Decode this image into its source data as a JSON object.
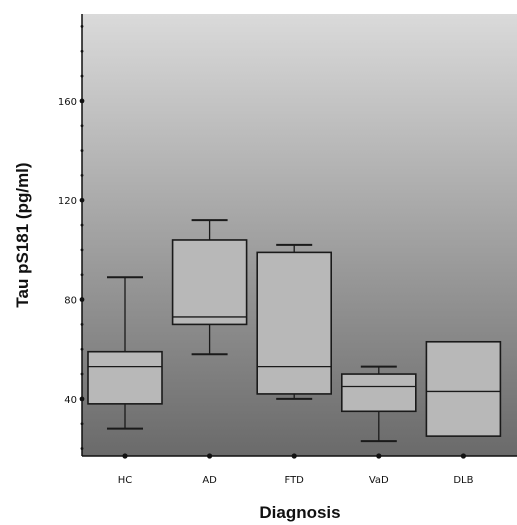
{
  "chart_data": {
    "type": "boxplot",
    "title": "",
    "xlabel": "Diagnosis",
    "ylabel": "Tau pS181 (pg/ml)",
    "ylim": [
      17,
      195
    ],
    "yticks": [
      40,
      80,
      120,
      160
    ],
    "grid": false,
    "categories": [
      "HC",
      "AD",
      "FTD",
      "VaD",
      "DLB"
    ],
    "boxes": [
      {
        "name": "HC",
        "whisker_low": 28,
        "q1": 38,
        "median": 53,
        "q3": 59,
        "whisker_high": 89
      },
      {
        "name": "AD",
        "whisker_low": 58,
        "q1": 70,
        "median": 73,
        "q3": 104,
        "whisker_high": 112
      },
      {
        "name": "FTD",
        "whisker_low": 40,
        "q1": 42,
        "median": 53,
        "q3": 99,
        "whisker_high": 102
      },
      {
        "name": "VaD",
        "whisker_low": 23,
        "q1": 35,
        "median": 45,
        "q3": 50,
        "whisker_high": 53
      },
      {
        "name": "DLB",
        "whisker_low": null,
        "q1": 25,
        "median": 43,
        "q3": 63,
        "whisker_high": null
      }
    ],
    "colors": {
      "background_top": "#dadada",
      "background_bottom": "#6a6a6a",
      "box_fill": "#b8b8b8",
      "stroke": "#1a1a1a"
    }
  }
}
